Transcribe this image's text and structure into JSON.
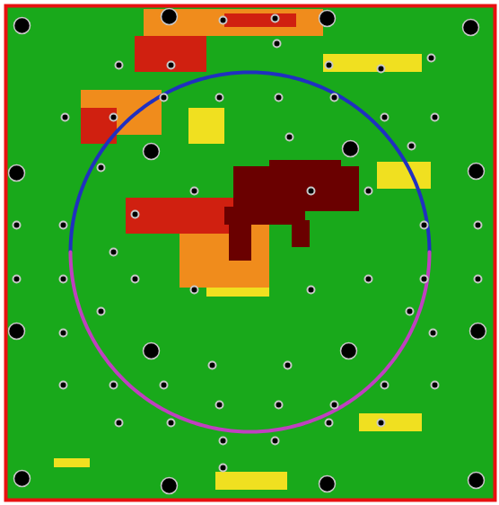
{
  "chart_data": {
    "type": "heatmap",
    "tick_labels": false,
    "xlim": [
      0,
      545
    ],
    "ylim": [
      0,
      550
    ],
    "color_levels": [
      0,
      1,
      2,
      3,
      4
    ],
    "colors": [
      "#19a91b",
      "#f0e020",
      "#f08c1c",
      "#d02010",
      "#6a0000"
    ],
    "cells": [
      {
        "x1": 0,
        "y1": 0,
        "x2": 545,
        "y2": 550,
        "value": 0
      },
      {
        "x1": 204,
        "y1": 114,
        "x2": 244,
        "y2": 154,
        "value": 1
      },
      {
        "x1": 354,
        "y1": 54,
        "x2": 464,
        "y2": 74,
        "value": 1
      },
      {
        "x1": 414,
        "y1": 174,
        "x2": 474,
        "y2": 204,
        "value": 1
      },
      {
        "x1": 54,
        "y1": 504,
        "x2": 94,
        "y2": 514,
        "value": 1
      },
      {
        "x1": 234,
        "y1": 519,
        "x2": 314,
        "y2": 539,
        "value": 1
      },
      {
        "x1": 394,
        "y1": 454,
        "x2": 464,
        "y2": 474,
        "value": 1
      },
      {
        "x1": 224,
        "y1": 284,
        "x2": 294,
        "y2": 324,
        "value": 1
      },
      {
        "x1": 154,
        "y1": 4,
        "x2": 354,
        "y2": 34,
        "value": 2
      },
      {
        "x1": 84,
        "y1": 94,
        "x2": 174,
        "y2": 144,
        "value": 2
      },
      {
        "x1": 194,
        "y1": 244,
        "x2": 294,
        "y2": 314,
        "value": 2
      },
      {
        "x1": 144,
        "y1": 34,
        "x2": 224,
        "y2": 74,
        "value": 3
      },
      {
        "x1": 244,
        "y1": 9,
        "x2": 324,
        "y2": 24,
        "value": 3
      },
      {
        "x1": 84,
        "y1": 114,
        "x2": 124,
        "y2": 154,
        "value": 3
      },
      {
        "x1": 134,
        "y1": 214,
        "x2": 254,
        "y2": 254,
        "value": 3
      },
      {
        "x1": 254,
        "y1": 179,
        "x2": 394,
        "y2": 229,
        "value": 4
      },
      {
        "x1": 294,
        "y1": 172,
        "x2": 374,
        "y2": 184,
        "value": 4
      },
      {
        "x1": 244,
        "y1": 224,
        "x2": 334,
        "y2": 244,
        "value": 4
      },
      {
        "x1": 249,
        "y1": 239,
        "x2": 274,
        "y2": 284,
        "value": 4
      },
      {
        "x1": 319,
        "y1": 239,
        "x2": 339,
        "y2": 269,
        "value": 4
      }
    ],
    "dots": {
      "x": [
        242,
        300,
        302,
        126,
        184,
        360,
        418,
        474,
        176,
        238,
        304,
        366,
        66,
        120,
        422,
        478,
        316,
        452,
        106,
        210,
        340,
        404,
        144,
        12,
        64,
        466,
        526,
        120,
        12,
        64,
        144,
        404,
        466,
        526,
        210,
        340,
        106,
        450,
        64,
        476,
        230,
        314,
        64,
        120,
        176,
        422,
        478,
        238,
        304,
        366,
        126,
        184,
        360,
        418,
        242,
        300,
        242
      ],
      "y": [
        16,
        14,
        42,
        66,
        66,
        66,
        70,
        58,
        102,
        102,
        102,
        102,
        124,
        124,
        124,
        124,
        146,
        156,
        180,
        206,
        206,
        206,
        232,
        244,
        244,
        244,
        244,
        274,
        304,
        304,
        304,
        304,
        304,
        304,
        316,
        316,
        340,
        340,
        364,
        364,
        400,
        400,
        422,
        422,
        422,
        422,
        422,
        444,
        444,
        444,
        464,
        464,
        464,
        464,
        484,
        484,
        514
      ]
    },
    "large_dots": {
      "x": [
        18,
        182,
        358,
        518,
        162,
        384,
        12,
        524,
        12,
        526,
        162,
        382,
        18,
        182,
        358,
        524
      ],
      "y": [
        22,
        12,
        14,
        24,
        162,
        159,
        186,
        184,
        362,
        362,
        384,
        384,
        526,
        534,
        532,
        528
      ]
    },
    "circle": {
      "cx": 272,
      "cy": 274,
      "r": 200,
      "colors": [
        "#2030c0",
        "#c040c0"
      ]
    },
    "color": "#e81010"
  }
}
